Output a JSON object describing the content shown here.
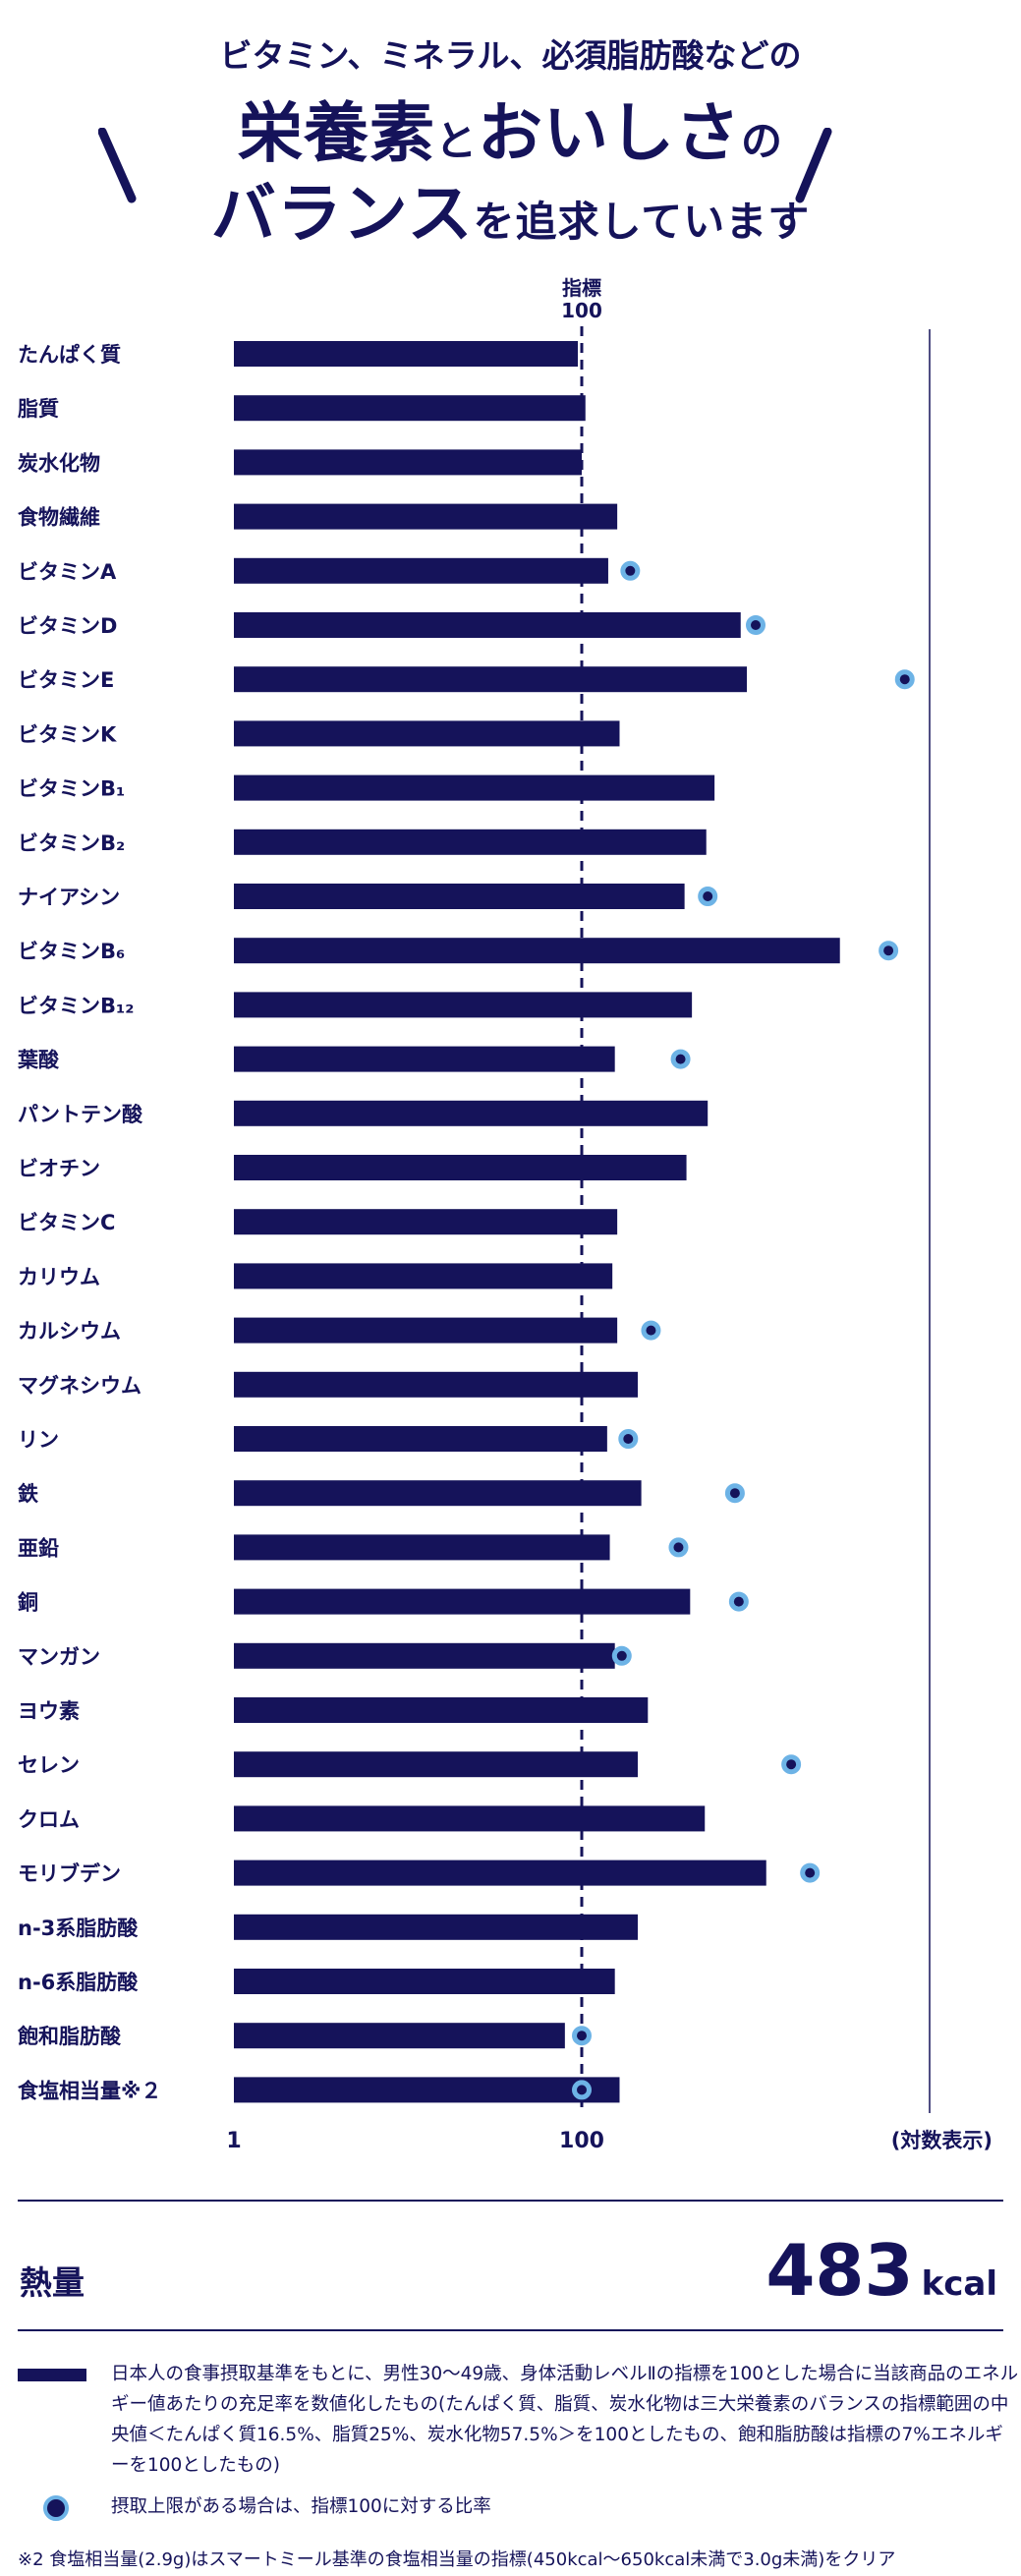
{
  "header": {
    "line1": "ビタミン、ミネラル、必須脂肪酸などの",
    "line2_a": "栄養素",
    "line2_b": "と",
    "line2_c": "おいしさ",
    "line2_d": "の",
    "line3_a": "バランス",
    "line3_b": "を追求しています"
  },
  "colors": {
    "bar": "#15135a",
    "dot_ring": "#6db3e6",
    "text": "#15135a"
  },
  "chart_data": {
    "type": "bar",
    "orientation": "horizontal",
    "x_scale": "log",
    "xlim": [
      1,
      10000
    ],
    "x_ticks": [
      "1",
      "100"
    ],
    "x_unit_label": "(対数表示)",
    "reference_label": [
      "指標",
      "100"
    ],
    "reference_value": 100,
    "grid": false,
    "categories": [
      "たんぱく質",
      "脂質",
      "炭水化物",
      "食物繊維",
      "ビタミンA",
      "ビタミンD",
      "ビタミンE",
      "ビタミンK",
      "ビタミンB₁",
      "ビタミンB₂",
      "ナイアシン",
      "ビタミンB₆",
      "ビタミンB₁₂",
      "葉酸",
      "パントテン酸",
      "ビオチン",
      "ビタミンC",
      "カリウム",
      "カルシウム",
      "マグネシウム",
      "リン",
      "鉄",
      "亜鉛",
      "銅",
      "マンガン",
      "ヨウ素",
      "セレン",
      "クロム",
      "モリブデン",
      "n-3系脂肪酸",
      "n-6系脂肪酸",
      "飽和脂肪酸",
      "食塩相当量※２"
    ],
    "series": [
      {
        "values": [
          95,
          105,
          100,
          160,
          142,
          820,
          890,
          165,
          580,
          520,
          390,
          3050,
          430,
          155,
          530,
          400,
          160,
          150,
          160,
          210,
          140,
          220,
          145,
          420,
          155,
          240,
          210,
          510,
          1150,
          210,
          155,
          80,
          165
        ]
      },
      {
        "values": [
          null,
          null,
          null,
          null,
          190,
          1000,
          7200,
          null,
          null,
          null,
          530,
          5800,
          null,
          370,
          null,
          null,
          null,
          null,
          250,
          null,
          185,
          760,
          360,
          800,
          170,
          null,
          1600,
          null,
          2050,
          null,
          null,
          100,
          100
        ]
      }
    ]
  },
  "energy": {
    "label": "熱量",
    "value": "483",
    "unit": "kcal"
  },
  "legend": {
    "bar_text": "日本人の食事摂取基準をもとに、男性30～49歳、身体活動レベルⅡの指標を100とした場合に当該商品のエネルギー値あたりの充足率を数値化したもの(たんぱく質、脂質、炭水化物は三大栄養素のバランスの指標範囲の中央値＜たんぱく質16.5%、脂質25%、炭水化物57.5%＞を100としたもの、飽和脂肪酸は指標の7%エネルギーを100としたもの)",
    "dot_text": "摂取上限がある場合は、指標100に対する比率"
  },
  "footnote": "※2 食塩相当量(2.9g)はスマートミール基準の食塩相当量の指標(450kcal～650kcal未満で3.0g未満)をクリア"
}
